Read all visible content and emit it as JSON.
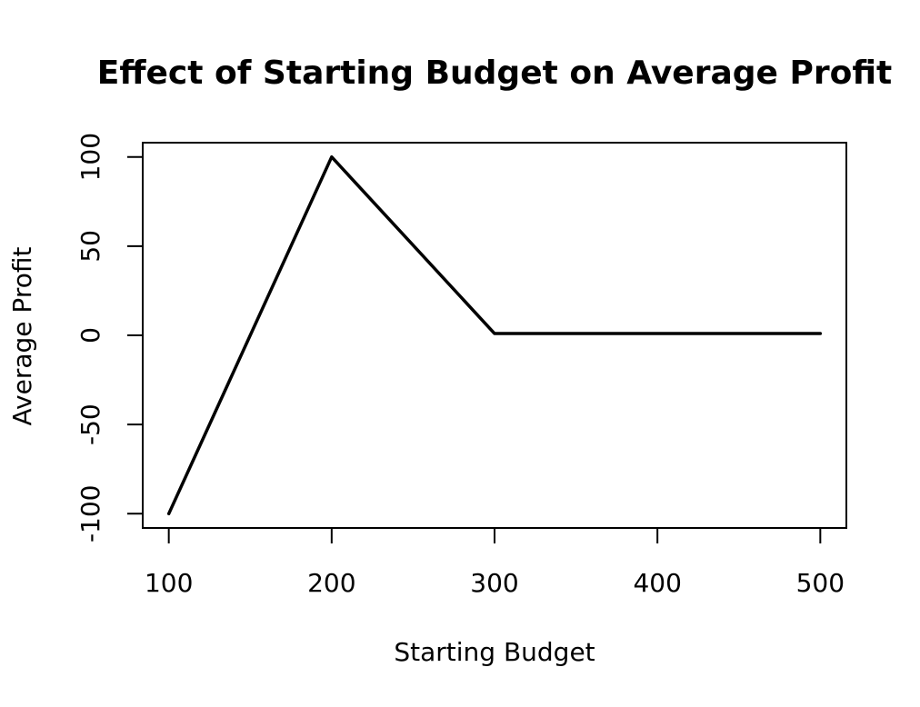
{
  "chart_data": {
    "type": "line",
    "title": "Effect of Starting Budget on Average Profit",
    "xlabel": "Starting Budget",
    "ylabel": "Average Profit",
    "x": [
      100,
      200,
      300,
      400,
      500
    ],
    "series": [
      {
        "values": [
          -100,
          100,
          1,
          1,
          1
        ]
      }
    ],
    "xlim": [
      84,
      516
    ],
    "ylim": [
      -108,
      108
    ],
    "xticks": [
      100,
      200,
      300,
      400,
      500
    ],
    "yticks": [
      -100,
      -50,
      0,
      50,
      100
    ],
    "xtick_labels": [
      "100",
      "200",
      "300",
      "400",
      "500"
    ],
    "ytick_labels": [
      "-100",
      "-50",
      "0",
      "50",
      "100"
    ],
    "grid": false,
    "line_color": "#000000"
  }
}
